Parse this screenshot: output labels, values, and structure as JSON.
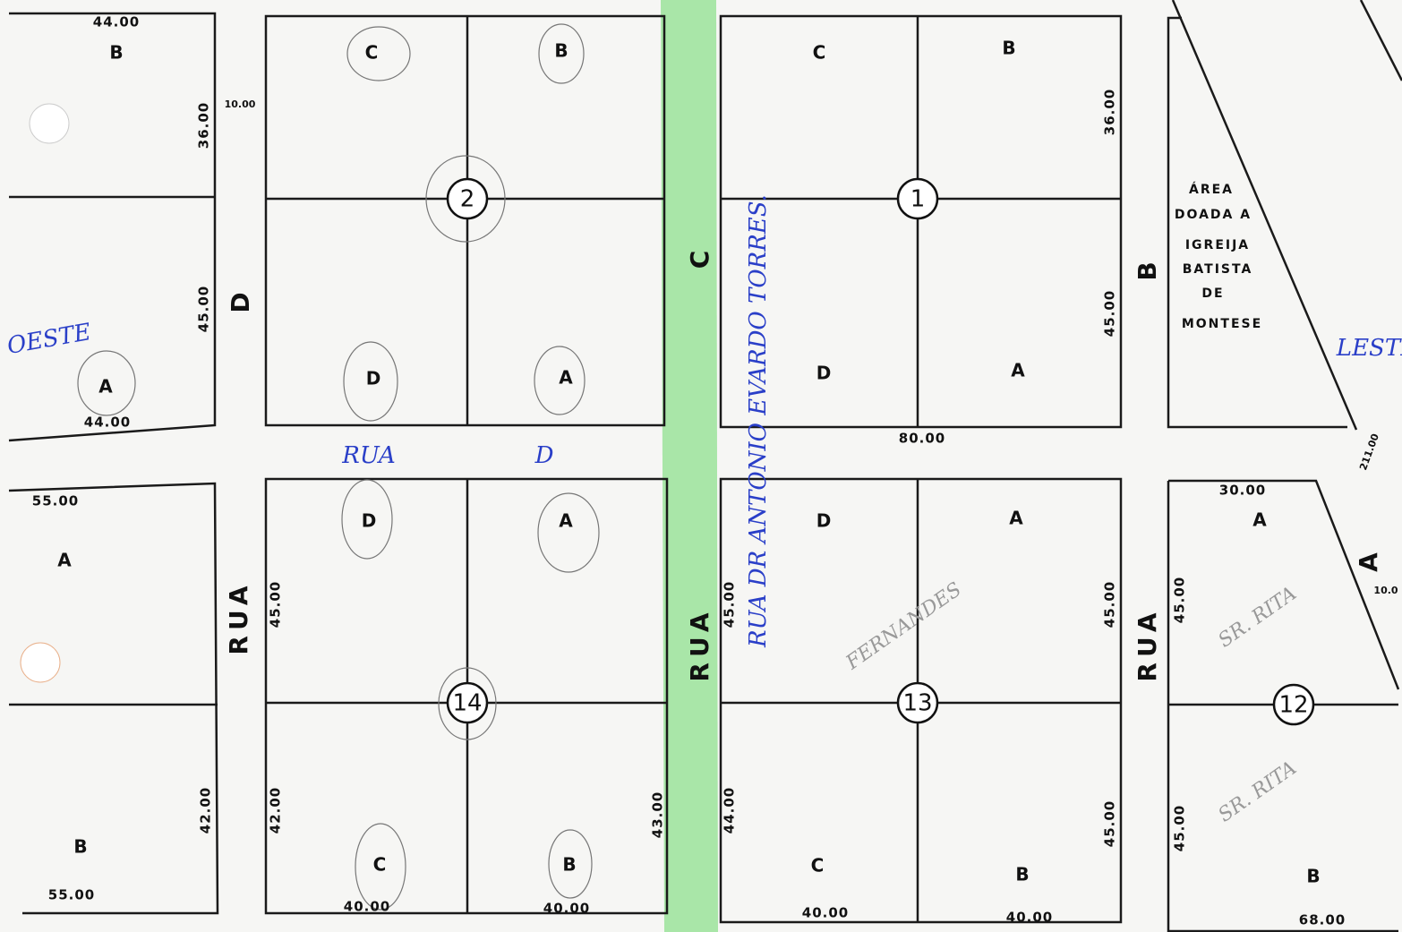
{
  "blocks": [
    {
      "number": "2",
      "lots": [
        "C",
        "B",
        "D",
        "A"
      ]
    },
    {
      "number": "1",
      "lots": [
        "C",
        "B",
        "D",
        "A"
      ]
    },
    {
      "number": "14",
      "lots": [
        "D",
        "A",
        "C",
        "B"
      ]
    },
    {
      "number": "13",
      "lots": [
        "D",
        "A",
        "C",
        "B"
      ]
    },
    {
      "number": "12",
      "lots": [
        "A",
        "B"
      ]
    }
  ],
  "left_lots": [
    "B",
    "A",
    "A",
    "B"
  ],
  "dimensions": [
    "44.00",
    "36.00",
    "45.00",
    "44.00",
    "10.00",
    "55.00",
    "42.00",
    "55.00",
    "36.00",
    "45.00",
    "80.00",
    "45.00",
    "42.00",
    "40.00",
    "40.00",
    "43.00",
    "45.00",
    "44.00",
    "45.00",
    "45.00",
    "40.00",
    "40.00",
    "30.00",
    "45.00",
    "45.00",
    "68.00",
    "211.00",
    "10.0"
  ],
  "streets": [
    "D",
    "RUA",
    "C",
    "RUA",
    "B",
    "RUA",
    "A"
  ],
  "church_area": [
    "ÁREA",
    "DOADA A",
    "IGREIJA",
    "BATISTA",
    "DE",
    "MONTESE"
  ],
  "handwritten": [
    "OESTE",
    "LESTE",
    "RUA",
    "D",
    "RUA DR ANTONIO EVARDO TORRES.",
    "SR. RITA",
    "SR. RITA",
    "FERNANDES"
  ]
}
